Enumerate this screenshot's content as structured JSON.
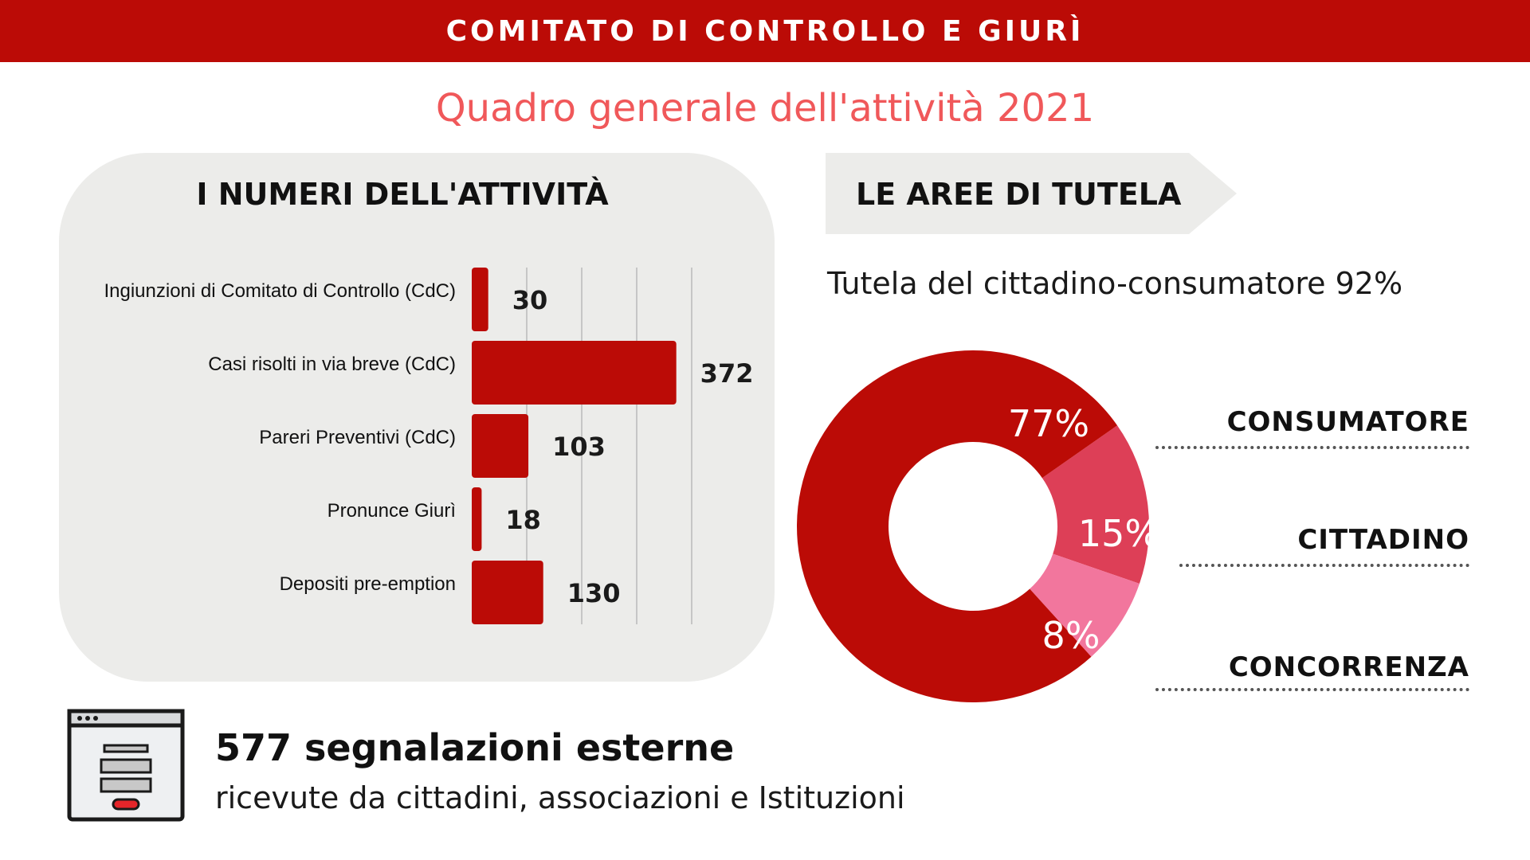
{
  "header": {
    "title": "COMITATO DI CONTROLLO E GIURÌ",
    "subtitle": "Quadro generale dell'attività 2021"
  },
  "colors": {
    "brand_red": "#bb0b06",
    "subtitle_coral": "#f0585a",
    "panel_gray": "#ececea",
    "slice_consumatore": "#bb0b06",
    "slice_cittadino": "#dd3f57",
    "slice_concorrenza": "#f2769d"
  },
  "activity": {
    "title": "I NUMERI DELL'ATTIVITÀ"
  },
  "areas": {
    "title": "LE AREE DI TUTELA",
    "tutela_text": "Tutela del cittadino-consumatore 92%",
    "labels": [
      "CONSUMATORE",
      "CITTADINO",
      "CONCORRENZA"
    ]
  },
  "footer": {
    "main": "577 segnalazioni esterne",
    "sub": "ricevute da cittadini, associazioni e Istituzioni",
    "icon": "form-window-icon"
  },
  "chart_data": [
    {
      "type": "bar",
      "orientation": "horizontal",
      "title": "I NUMERI DELL'ATTIVITÀ",
      "categories": [
        "Ingiunzioni di Comitato di Controllo (CdC)",
        "Casi risolti in via breve (CdC)",
        "Pareri Preventivi (CdC)",
        "Pronunce Giurì",
        "Depositi pre-emption"
      ],
      "values": [
        30,
        372,
        103,
        18,
        130
      ],
      "xlim": [
        0,
        400
      ],
      "grid": true,
      "bar_color": "#bb0b06"
    },
    {
      "type": "pie",
      "donut": true,
      "title": "LE AREE DI TUTELA",
      "categories": [
        "CONSUMATORE",
        "CITTADINO",
        "CONCORRENZA"
      ],
      "values": [
        77,
        15,
        8
      ],
      "labels": [
        "77%",
        "15%",
        "8%"
      ],
      "colors": [
        "#bb0b06",
        "#dd3f57",
        "#f2769d"
      ]
    }
  ]
}
